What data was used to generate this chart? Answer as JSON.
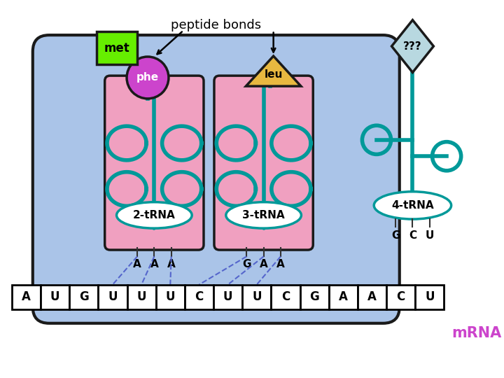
{
  "bg_color": "#ffffff",
  "ribosome_color": "#aac4e8",
  "ribosome_outline": "#1a1a1a",
  "slot_color": "#f0a0c0",
  "slot_outline": "#1a1a1a",
  "tRNA_color": "#009999",
  "tRNA_lw": 4,
  "met_color": "#66ee00",
  "met_outline": "#1a1a1a",
  "met_text": "met",
  "phe_color": "#cc44cc",
  "phe_outline": "#1a1a1a",
  "phe_text": "phe",
  "leu_color": "#e8b840",
  "leu_outline": "#1a1a1a",
  "leu_text": "leu",
  "qqq_color": "#b8d8e0",
  "qqq_outline": "#1a1a1a",
  "qqq_text": "???",
  "mrna_codons": [
    "A",
    "U",
    "G",
    "U",
    "U",
    "U",
    "C",
    "U",
    "U",
    "C",
    "G",
    "A",
    "A",
    "C",
    "U"
  ],
  "mrna_color": "#cc44cc",
  "mrna_text": "mRNA",
  "trna2_text": "2-tRNA",
  "trna3_text": "3-tRNA",
  "trna4_text": "4-tRNA",
  "trna2_codons": [
    "A",
    "A",
    "A"
  ],
  "trna3_codons": [
    "G",
    "A",
    "A"
  ],
  "trna4_codons": [
    "G",
    "C",
    "U"
  ],
  "peptide_bonds_text": "peptide bonds"
}
